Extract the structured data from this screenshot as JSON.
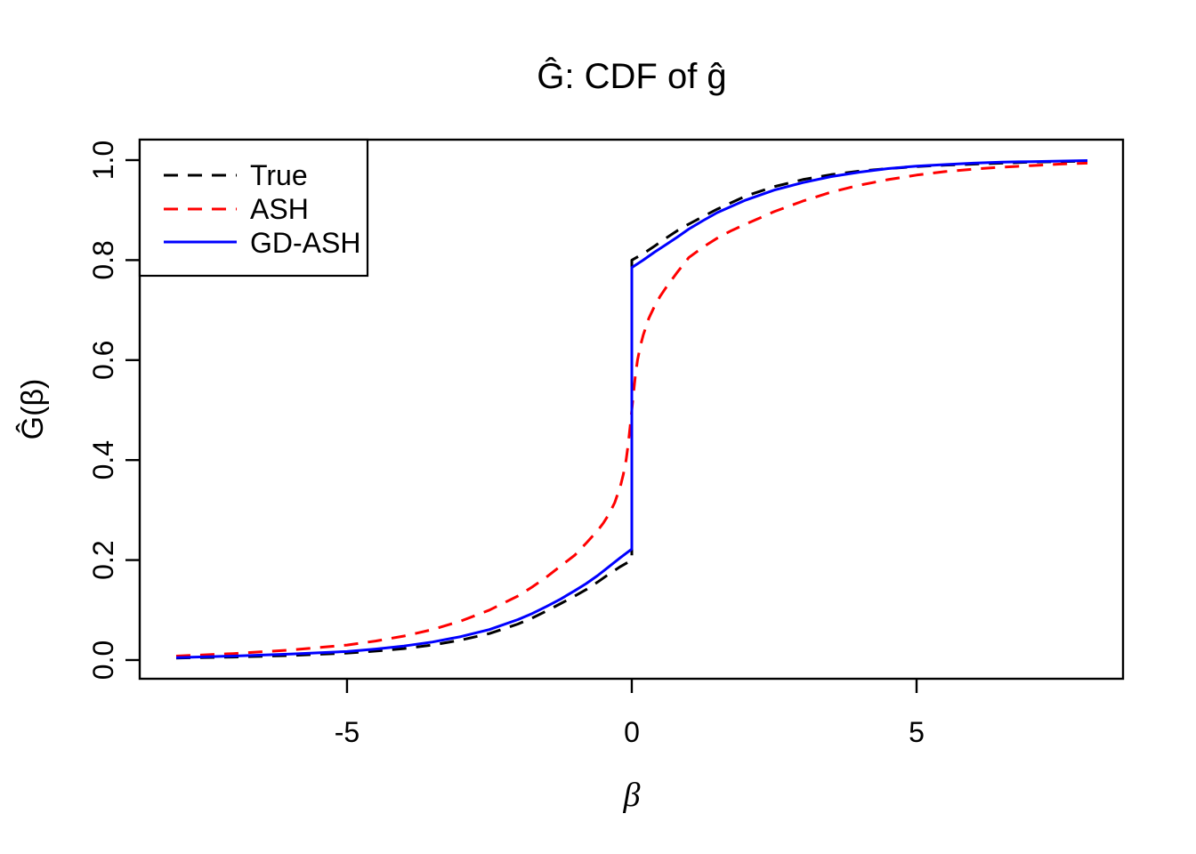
{
  "title": "Ĝ: CDF of ĝ",
  "x_label": "β",
  "y_label": "Ĝ(β)",
  "colors": {
    "true": "#000000",
    "ash": "#FF0000",
    "gdash": "#0000FF",
    "frame": "#000000",
    "background": "#FFFFFF"
  },
  "legend": {
    "items": [
      {
        "label": "True",
        "color": "#000000",
        "style": "dashed"
      },
      {
        "label": "ASH",
        "color": "#FF0000",
        "style": "dashed"
      },
      {
        "label": "GD-ASH",
        "color": "#0000FF",
        "style": "solid"
      }
    ]
  },
  "axes": {
    "x_range": [
      -8.64,
      8.625
    ],
    "y_range": [
      -0.0374,
      1.0409
    ],
    "x_ticks": [
      {
        "value": -5,
        "label": "-5"
      },
      {
        "value": 0,
        "label": "0"
      },
      {
        "value": 5,
        "label": "5"
      }
    ],
    "y_ticks": [
      {
        "value": 0.0,
        "label": "0.0"
      },
      {
        "value": 0.2,
        "label": "0.2"
      },
      {
        "value": 0.4,
        "label": "0.4"
      },
      {
        "value": 0.6,
        "label": "0.6"
      },
      {
        "value": 0.8,
        "label": "0.8"
      },
      {
        "value": 1.0,
        "label": "1.0"
      }
    ],
    "grid": false,
    "legend_position": "top-left"
  },
  "chart_data": {
    "type": "line",
    "title": "Ĝ: CDF of ĝ",
    "xlabel": "β",
    "ylabel": "Ĝ(β)",
    "xlim": [
      -8,
      8
    ],
    "ylim": [
      0,
      1
    ],
    "note": "CDFs with a point mass at beta=0; True jumps 0.200->0.800, GD-ASH jumps 0.222->0.785, ASH is smooth through 0.5",
    "series": [
      {
        "name": "True",
        "color": "#000000",
        "style": "dashed",
        "points": [
          [
            -8,
            0.004
          ],
          [
            -7,
            0.006
          ],
          [
            -6,
            0.009
          ],
          [
            -5,
            0.014
          ],
          [
            -4.5,
            0.018
          ],
          [
            -4,
            0.023
          ],
          [
            -3.5,
            0.03
          ],
          [
            -3,
            0.04
          ],
          [
            -2.5,
            0.053
          ],
          [
            -2,
            0.072
          ],
          [
            -1.75,
            0.084
          ],
          [
            -1.5,
            0.098
          ],
          [
            -1.25,
            0.113
          ],
          [
            -1,
            0.128
          ],
          [
            -0.8,
            0.141
          ],
          [
            -0.6,
            0.156
          ],
          [
            -0.4,
            0.172
          ],
          [
            -0.2,
            0.187
          ],
          [
            0,
            0.2
          ],
          [
            0,
            0.8
          ],
          [
            0.2,
            0.813
          ],
          [
            0.4,
            0.828
          ],
          [
            0.6,
            0.844
          ],
          [
            0.8,
            0.859
          ],
          [
            1,
            0.872
          ],
          [
            1.25,
            0.887
          ],
          [
            1.5,
            0.902
          ],
          [
            2,
            0.928
          ],
          [
            2.5,
            0.947
          ],
          [
            3,
            0.961
          ],
          [
            3.5,
            0.971
          ],
          [
            4,
            0.978
          ],
          [
            4.5,
            0.983
          ],
          [
            5,
            0.987
          ],
          [
            5.5,
            0.99
          ],
          [
            6,
            0.992
          ],
          [
            6.5,
            0.994
          ],
          [
            7,
            0.996
          ],
          [
            7.5,
            0.997
          ],
          [
            8,
            0.998
          ]
        ]
      },
      {
        "name": "ASH",
        "color": "#FF0000",
        "style": "dashed",
        "points": [
          [
            -8,
            0.008
          ],
          [
            -7,
            0.013
          ],
          [
            -6,
            0.02
          ],
          [
            -5,
            0.03
          ],
          [
            -4.5,
            0.038
          ],
          [
            -4,
            0.048
          ],
          [
            -3.5,
            0.061
          ],
          [
            -3,
            0.078
          ],
          [
            -2.5,
            0.1
          ],
          [
            -2,
            0.128
          ],
          [
            -1.75,
            0.146
          ],
          [
            -1.5,
            0.166
          ],
          [
            -1.25,
            0.188
          ],
          [
            -1,
            0.21
          ],
          [
            -0.8,
            0.234
          ],
          [
            -0.6,
            0.259
          ],
          [
            -0.5,
            0.274
          ],
          [
            -0.4,
            0.292
          ],
          [
            -0.3,
            0.315
          ],
          [
            -0.2,
            0.348
          ],
          [
            -0.15,
            0.371
          ],
          [
            -0.1,
            0.4
          ],
          [
            -0.06,
            0.434
          ],
          [
            -0.03,
            0.467
          ],
          [
            0,
            0.5
          ],
          [
            0.03,
            0.533
          ],
          [
            0.06,
            0.566
          ],
          [
            0.1,
            0.6
          ],
          [
            0.15,
            0.628
          ],
          [
            0.2,
            0.65
          ],
          [
            0.3,
            0.684
          ],
          [
            0.4,
            0.708
          ],
          [
            0.5,
            0.728
          ],
          [
            0.6,
            0.745
          ],
          [
            0.8,
            0.776
          ],
          [
            1,
            0.805
          ],
          [
            1.25,
            0.826
          ],
          [
            1.5,
            0.844
          ],
          [
            1.75,
            0.859
          ],
          [
            2,
            0.872
          ],
          [
            2.5,
            0.897
          ],
          [
            3,
            0.918
          ],
          [
            3.5,
            0.936
          ],
          [
            4,
            0.95
          ],
          [
            4.5,
            0.961
          ],
          [
            5,
            0.97
          ],
          [
            5.5,
            0.977
          ],
          [
            6,
            0.982
          ],
          [
            6.5,
            0.986
          ],
          [
            7,
            0.989
          ],
          [
            7.5,
            0.992
          ],
          [
            8,
            0.994
          ]
        ]
      },
      {
        "name": "GD-ASH",
        "color": "#0000FF",
        "style": "solid",
        "points": [
          [
            -8,
            0.005
          ],
          [
            -7,
            0.008
          ],
          [
            -6,
            0.012
          ],
          [
            -5,
            0.017
          ],
          [
            -4.5,
            0.022
          ],
          [
            -4,
            0.028
          ],
          [
            -3.5,
            0.036
          ],
          [
            -3,
            0.047
          ],
          [
            -2.5,
            0.061
          ],
          [
            -2,
            0.081
          ],
          [
            -1.75,
            0.093
          ],
          [
            -1.5,
            0.107
          ],
          [
            -1.25,
            0.122
          ],
          [
            -1,
            0.139
          ],
          [
            -0.8,
            0.153
          ],
          [
            -0.6,
            0.169
          ],
          [
            -0.4,
            0.187
          ],
          [
            -0.2,
            0.205
          ],
          [
            0,
            0.222
          ],
          [
            0,
            0.785
          ],
          [
            0.2,
            0.8
          ],
          [
            0.4,
            0.816
          ],
          [
            0.6,
            0.831
          ],
          [
            0.8,
            0.846
          ],
          [
            1,
            0.862
          ],
          [
            1.25,
            0.879
          ],
          [
            1.5,
            0.895
          ],
          [
            2,
            0.92
          ],
          [
            2.5,
            0.94
          ],
          [
            3,
            0.955
          ],
          [
            3.5,
            0.967
          ],
          [
            4,
            0.976
          ],
          [
            4.5,
            0.983
          ],
          [
            5,
            0.988
          ],
          [
            5.5,
            0.991
          ],
          [
            6,
            0.994
          ],
          [
            6.5,
            0.996
          ],
          [
            7,
            0.997
          ],
          [
            7.5,
            0.998
          ],
          [
            8,
            0.999
          ]
        ]
      }
    ]
  }
}
